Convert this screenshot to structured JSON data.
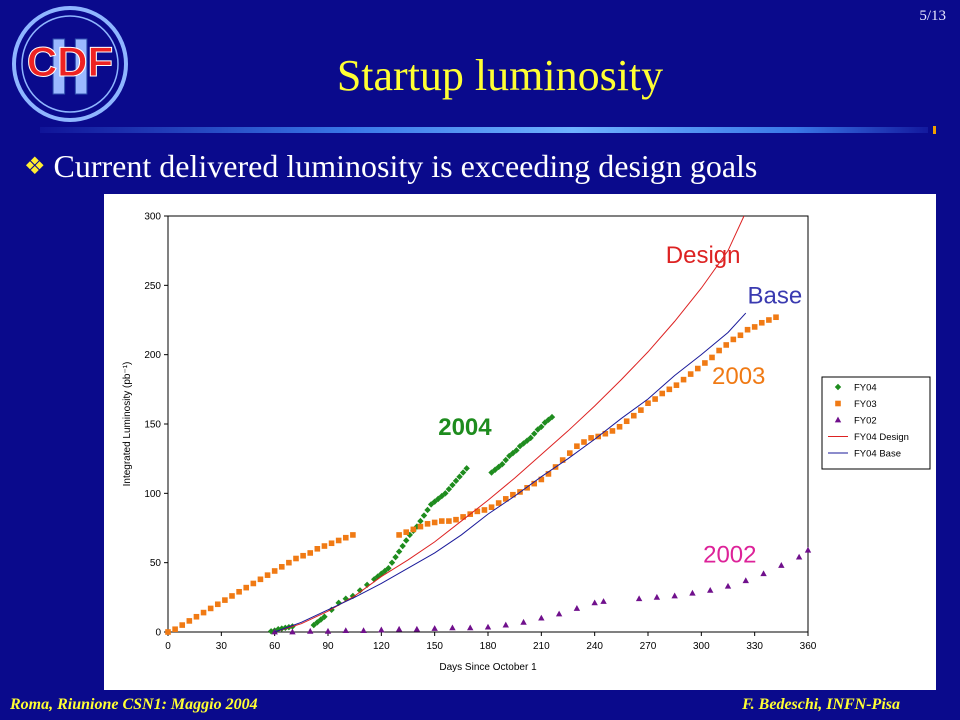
{
  "slide": {
    "page_number": "5/13",
    "title": "Startup luminosity",
    "bullet": "Current delivered luminosity is exceeding design goals",
    "footer_left": "Roma, Riunione CSN1: Maggio 2004",
    "footer_right": "F. Bedeschi, INFN-Pisa",
    "logo_text": "CDF II"
  },
  "colors": {
    "background": "#0a0a8c",
    "title": "#ffff33",
    "FY04": "#1e8c1e",
    "FY03": "#f07a14",
    "FY02": "#70108c",
    "design": "#dd2222",
    "base": "#1a1a9a"
  },
  "chart_data": {
    "type": "scatter",
    "xlabel": "Days Since October 1",
    "ylabel": "Integrated Luminosity (pb⁻¹)",
    "xlim": [
      0,
      360
    ],
    "ylim": [
      0,
      300
    ],
    "xticks": [
      0,
      30,
      60,
      90,
      120,
      150,
      180,
      210,
      240,
      270,
      300,
      330,
      360
    ],
    "yticks": [
      0,
      50,
      100,
      150,
      200,
      250,
      300
    ],
    "grid": false,
    "legend_position": "right",
    "legend": [
      "FY04",
      "FY03",
      "FY02",
      "FY04 Design",
      "FY04 Base"
    ],
    "annotations": [
      {
        "text": "Design",
        "color": "#dd2222",
        "x": 280,
        "y": 266
      },
      {
        "text": "Base",
        "color": "#3a3ab0",
        "x": 326,
        "y": 237
      },
      {
        "text": "2003",
        "color": "#f07a14",
        "x": 306,
        "y": 179
      },
      {
        "text": "2004",
        "color": "#1e8c1e",
        "x": 152,
        "y": 142
      },
      {
        "text": "2002",
        "color": "#dd2299",
        "x": 301,
        "y": 50
      }
    ],
    "series": [
      {
        "name": "FY04",
        "marker": "diamond",
        "color": "#1e8c1e",
        "x": [
          58,
          60,
          62,
          64,
          66,
          68,
          70,
          82,
          84,
          86,
          88,
          92,
          96,
          100,
          104,
          108,
          112,
          116,
          118,
          120,
          122,
          124,
          126,
          128,
          130,
          132,
          134,
          136,
          138,
          140,
          142,
          144,
          146,
          148,
          150,
          152,
          154,
          156,
          158,
          160,
          162,
          164,
          166,
          168,
          182,
          184,
          186,
          188,
          190,
          192,
          194,
          196,
          198,
          200,
          202,
          204,
          206,
          208,
          210,
          212,
          214,
          216
        ],
        "y": [
          0.5,
          1,
          2,
          2.5,
          3,
          3.5,
          4,
          5,
          7,
          9,
          11,
          16,
          21,
          24,
          26,
          30,
          34,
          38,
          40,
          42,
          44,
          46,
          50,
          54,
          58,
          62,
          66,
          70,
          73,
          76,
          80,
          84,
          88,
          92,
          94,
          96,
          98,
          100,
          103,
          106,
          109,
          112,
          115,
          118,
          115,
          117,
          119,
          121,
          124,
          127,
          129,
          131,
          134,
          136,
          138,
          140,
          143,
          146,
          148,
          151,
          153,
          155
        ]
      },
      {
        "name": "FY03",
        "marker": "square",
        "color": "#f07a14",
        "x": [
          0,
          4,
          8,
          12,
          16,
          20,
          24,
          28,
          32,
          36,
          40,
          44,
          48,
          52,
          56,
          60,
          64,
          68,
          72,
          76,
          80,
          84,
          88,
          92,
          96,
          100,
          104,
          130,
          134,
          138,
          142,
          146,
          150,
          154,
          158,
          162,
          166,
          170,
          174,
          178,
          182,
          186,
          190,
          194,
          198,
          202,
          206,
          210,
          214,
          218,
          222,
          226,
          230,
          234,
          238,
          242,
          246,
          250,
          254,
          258,
          262,
          266,
          270,
          274,
          278,
          282,
          286,
          290,
          294,
          298,
          302,
          306,
          310,
          314,
          318,
          322,
          326,
          330,
          334,
          338,
          342
        ],
        "y": [
          0,
          2,
          5,
          8,
          11,
          14,
          17,
          20,
          23,
          26,
          29,
          32,
          35,
          38,
          41,
          44,
          47,
          50,
          53,
          55,
          57,
          60,
          62,
          64,
          66,
          68,
          70,
          70,
          72,
          74,
          76,
          78,
          79,
          80,
          80,
          81,
          83,
          85,
          87,
          88,
          90,
          93,
          96,
          99,
          101,
          104,
          107,
          110,
          114,
          119,
          124,
          129,
          134,
          137,
          140,
          141,
          143,
          145,
          148,
          152,
          156,
          160,
          165,
          168,
          172,
          175,
          178,
          182,
          186,
          190,
          194,
          198,
          203,
          207,
          211,
          214,
          218,
          220,
          223,
          225,
          227
        ]
      },
      {
        "name": "FY02",
        "marker": "triangle",
        "color": "#70108c",
        "x": [
          60,
          70,
          80,
          90,
          100,
          110,
          120,
          130,
          140,
          150,
          160,
          170,
          180,
          190,
          200,
          210,
          220,
          230,
          240,
          245,
          265,
          275,
          285,
          295,
          305,
          315,
          325,
          335,
          345,
          355,
          360
        ],
        "y": [
          0,
          0,
          0.5,
          0.5,
          1,
          1,
          1.5,
          2,
          2,
          2.5,
          3,
          3,
          3.5,
          5,
          7,
          10,
          13,
          17,
          21,
          22,
          24,
          25,
          26,
          28,
          30,
          33,
          37,
          42,
          48,
          54,
          59
        ]
      },
      {
        "name": "FY04 Design",
        "line": true,
        "color": "#dd2222",
        "x": [
          60,
          75,
          90,
          105,
          120,
          135,
          150,
          165,
          180,
          195,
          210,
          225,
          240,
          255,
          270,
          285,
          300,
          315,
          324
        ],
        "y": [
          0,
          6,
          15,
          26,
          40,
          52,
          65,
          80,
          95,
          111,
          128,
          145,
          163,
          182,
          202,
          224,
          248,
          275,
          300
        ]
      },
      {
        "name": "FY04 Base",
        "line": true,
        "color": "#1a1a9a",
        "x": [
          60,
          75,
          90,
          105,
          120,
          135,
          150,
          165,
          180,
          195,
          210,
          225,
          240,
          255,
          270,
          285,
          300,
          315,
          325
        ],
        "y": [
          0,
          7,
          16,
          25,
          35,
          46,
          57,
          70,
          85,
          98,
          112,
          125,
          139,
          154,
          168,
          185,
          200,
          216,
          230
        ]
      }
    ]
  }
}
